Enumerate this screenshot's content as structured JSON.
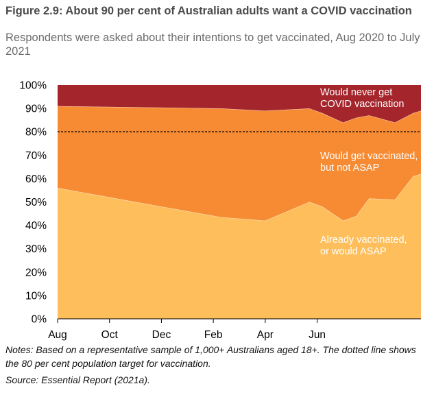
{
  "figure": {
    "title": "Figure 2.9: About 90 per cent of Australian adults want a COVID vaccination",
    "subtitle": "Respondents were asked about their intentions to get vaccinated, Aug 2020 to July 2021",
    "notes": "Notes: Based on a representative sample of 1,000+ Australians aged 18+. The dotted line shows the 80 per cent population target for vaccination.",
    "source": "Source: Essential Report (2021a)."
  },
  "chart_data": {
    "type": "area",
    "stacked": true,
    "x_unit": "months since Aug 2020",
    "x": [
      0,
      3.0,
      6.3,
      8.0,
      9.7,
      10.2,
      11.0,
      11.5,
      12.0,
      13.0,
      13.7,
      14.0
    ],
    "xticks": [
      {
        "x": 0,
        "label": "Aug"
      },
      {
        "x": 2,
        "label": "Oct"
      },
      {
        "x": 4,
        "label": "Dec"
      },
      {
        "x": 6,
        "label": "Feb"
      },
      {
        "x": 8,
        "label": "Apr"
      },
      {
        "x": 10,
        "label": "Jun"
      }
    ],
    "ylim": [
      0,
      100
    ],
    "yticks": [
      "0%",
      "10%",
      "20%",
      "30%",
      "40%",
      "50%",
      "60%",
      "70%",
      "80%",
      "90%",
      "100%"
    ],
    "series": [
      {
        "name": "Already vaccinated, or would ASAP",
        "label_lines": [
          "Already vaccinated,",
          "or would ASAP"
        ],
        "color": "#fdbe5b",
        "values": [
          56,
          50,
          43.5,
          42,
          50,
          48,
          42,
          44,
          51.5,
          51,
          61,
          62
        ]
      },
      {
        "name": "Would get vaccinated, but not ASAP",
        "label_lines": [
          "Would get vaccinated,",
          "but not ASAP"
        ],
        "color": "#f68b33",
        "values": [
          35,
          40.5,
          46.5,
          47,
          40,
          40,
          42,
          42,
          35.5,
          33,
          27,
          27
        ]
      },
      {
        "name": "Would never get COVID vaccination",
        "label_lines": [
          "Would never get",
          "COVID vaccination"
        ],
        "color": "#a4262c",
        "values": [
          9,
          9.5,
          10,
          11,
          10,
          12,
          16,
          14,
          13,
          16,
          12,
          11
        ]
      }
    ],
    "reference_line": {
      "y": 80,
      "style": "dotted",
      "color": "#000000"
    },
    "grid": false
  }
}
